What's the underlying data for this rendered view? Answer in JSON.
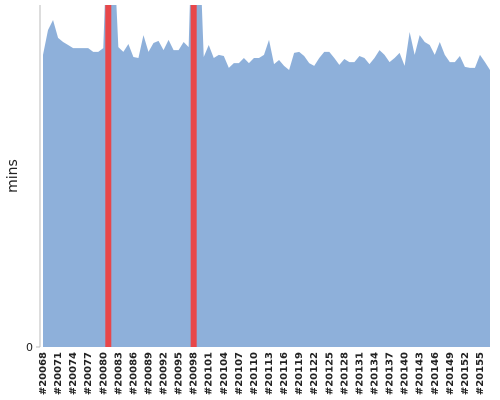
{
  "chart_data": {
    "type": "area",
    "ylabel": "mins",
    "categories": [
      "#20068",
      null,
      null,
      "#20071",
      null,
      null,
      "#20074",
      null,
      null,
      "#20077",
      null,
      null,
      "#20080",
      null,
      null,
      "#20083",
      null,
      null,
      "#20086",
      null,
      null,
      "#20089",
      null,
      null,
      "#20092",
      null,
      null,
      "#20095",
      null,
      null,
      "#20098",
      null,
      null,
      "#20101",
      null,
      null,
      "#20104",
      null,
      null,
      "#20107",
      null,
      null,
      "#20110",
      null,
      null,
      "#20113",
      null,
      null,
      "#20116",
      null,
      null,
      "#20119",
      null,
      null,
      "#20122",
      null,
      null,
      "#20125",
      null,
      null,
      "#20128",
      null,
      null,
      "#20131",
      null,
      null,
      "#20134",
      null,
      null,
      "#20137",
      null,
      null,
      "#20140",
      null,
      null,
      "#20143",
      null,
      null,
      "#20146",
      null,
      null,
      "#20149",
      null,
      null,
      "#20152",
      null,
      null,
      "#20155",
      null,
      null
    ],
    "values": [
      85.4,
      92.7,
      95.6,
      90.4,
      89.2,
      88.3,
      87.4,
      87.4,
      87.4,
      87.4,
      86.3,
      86.3,
      87.4,
      130,
      120,
      87.7,
      86.3,
      88.6,
      84.8,
      84.5,
      91.2,
      86.3,
      88.9,
      89.5,
      86.8,
      89.8,
      86.8,
      86.8,
      89.2,
      87.7,
      140,
      125,
      84.8,
      88.3,
      84.5,
      85.4,
      85.1,
      81.6,
      83.0,
      83.0,
      84.5,
      83.0,
      84.5,
      84.5,
      85.4,
      89.8,
      82.7,
      83.9,
      82.2,
      81.0,
      86.0,
      86.3,
      85.1,
      83.0,
      82.2,
      84.5,
      86.3,
      86.3,
      84.5,
      82.5,
      84.2,
      83.3,
      83.3,
      85.1,
      84.5,
      82.7,
      84.5,
      86.8,
      85.4,
      83.3,
      84.5,
      86.0,
      82.2,
      92.1,
      85.4,
      91.2,
      89.2,
      88.3,
      85.4,
      89.2,
      85.4,
      83.3,
      83.3,
      85.1,
      81.9,
      81.6,
      81.6,
      85.4,
      83.3,
      81.0
    ],
    "color": "#8eb0da",
    "highlights": [
      13,
      30
    ],
    "highlight_color": "#e8474a",
    "ylim": [
      0,
      100
    ],
    "yticks": [
      0
    ]
  }
}
